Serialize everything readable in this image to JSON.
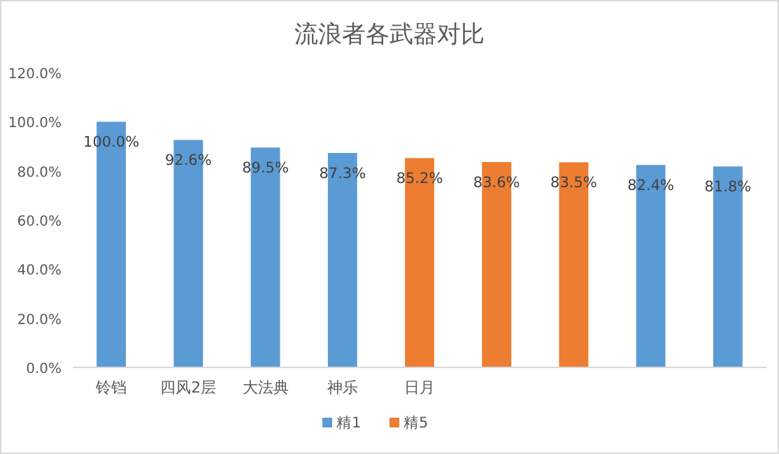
{
  "chart_data": {
    "type": "bar",
    "title": "流浪者各武器对比",
    "categories": [
      "铃铛",
      "四风2层",
      "大法典",
      "神乐",
      "日月",
      null,
      null,
      null,
      null
    ],
    "series": [
      {
        "name": "精1",
        "color": "#5b9bd5",
        "values": [
          100.0,
          92.6,
          89.5,
          87.3,
          null,
          null,
          null,
          82.4,
          81.8
        ],
        "value_labels": [
          "100.0%",
          "92.6%",
          "89.5%",
          "87.3%",
          null,
          null,
          null,
          "82.4%",
          "81.8%"
        ]
      },
      {
        "name": "精5",
        "color": "#ed7d31",
        "values": [
          null,
          null,
          null,
          null,
          85.2,
          83.6,
          83.5,
          null,
          null
        ],
        "value_labels": [
          null,
          null,
          null,
          null,
          "85.2%",
          "83.6%",
          "83.5%",
          null,
          null
        ]
      }
    ],
    "ylim": [
      0,
      120
    ],
    "yticks": [
      {
        "value": 0,
        "label": "0.0%"
      },
      {
        "value": 20,
        "label": "20.0%"
      },
      {
        "value": 40,
        "label": "40.0%"
      },
      {
        "value": 60,
        "label": "60.0%"
      },
      {
        "value": 80,
        "label": "80.0%"
      },
      {
        "value": 100,
        "label": "100.0%"
      },
      {
        "value": 120,
        "label": "120.0%"
      }
    ],
    "legend": "bottom"
  }
}
